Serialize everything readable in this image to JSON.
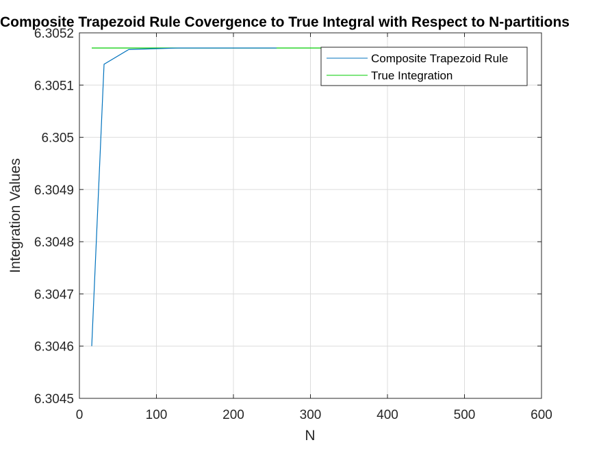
{
  "chart_data": {
    "type": "line",
    "title": "Composite Trapezoid Rule Covergence to True Integral with Respect to N-partitions",
    "xlabel": "N",
    "ylabel": "Integration Values",
    "xlim": [
      0,
      600
    ],
    "ylim": [
      6.3045,
      6.3052
    ],
    "xticks": [
      0,
      100,
      200,
      300,
      400,
      500,
      600
    ],
    "xtick_labels": [
      "0",
      "100",
      "200",
      "300",
      "400",
      "500",
      "600"
    ],
    "yticks": [
      6.3045,
      6.3046,
      6.3047,
      6.3048,
      6.3049,
      6.305,
      6.3051,
      6.3052
    ],
    "ytick_labels": [
      "6.3045",
      "6.3046",
      "6.3047",
      "6.3048",
      "6.3049",
      "6.305",
      "6.3051",
      "6.3052"
    ],
    "grid": true,
    "legend_position": "top-right",
    "series": [
      {
        "name": "Composite Trapezoid Rule",
        "color": "#0072BD",
        "x": [
          16,
          32,
          64,
          128,
          256
        ],
        "y": [
          6.3046,
          6.30514,
          6.305168,
          6.305171,
          6.305171
        ]
      },
      {
        "name": "True Integration",
        "color": "#00CC00",
        "x": [
          16,
          32,
          64,
          128,
          256,
          512
        ],
        "y": [
          6.305171,
          6.305171,
          6.305171,
          6.305171,
          6.305171,
          6.305171
        ]
      }
    ]
  }
}
